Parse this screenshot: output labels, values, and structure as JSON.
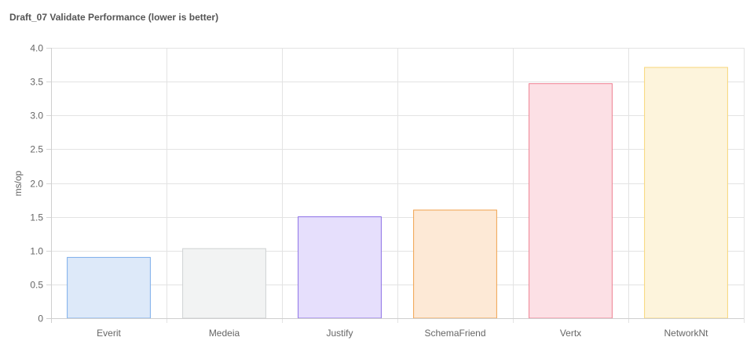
{
  "chart_data": {
    "type": "bar",
    "title": "Draft_07 Validate Performance (lower is better)",
    "xlabel": "",
    "ylabel": "ms/op",
    "categories": [
      "Everit",
      "Medeia",
      "Justify",
      "SchemaFriend",
      "Vertx",
      "NetworkNt"
    ],
    "values": [
      0.9,
      1.03,
      1.5,
      1.6,
      3.47,
      3.71
    ],
    "ylim": [
      0,
      4.0
    ],
    "yticks": [
      "0",
      "0.5",
      "1.0",
      "1.5",
      "2.0",
      "2.5",
      "3.0",
      "3.5",
      "4.0"
    ],
    "grid": true,
    "legend": "none",
    "colors": [
      {
        "fill": "#dde9f9",
        "stroke": "#7badea"
      },
      {
        "fill": "#f2f3f3",
        "stroke": "#cfd1d3"
      },
      {
        "fill": "#e6dffc",
        "stroke": "#8a6ee6"
      },
      {
        "fill": "#fde9d6",
        "stroke": "#f0a24e"
      },
      {
        "fill": "#fce0e5",
        "stroke": "#ef7f92"
      },
      {
        "fill": "#fdf4dc",
        "stroke": "#f7d679"
      }
    ]
  }
}
